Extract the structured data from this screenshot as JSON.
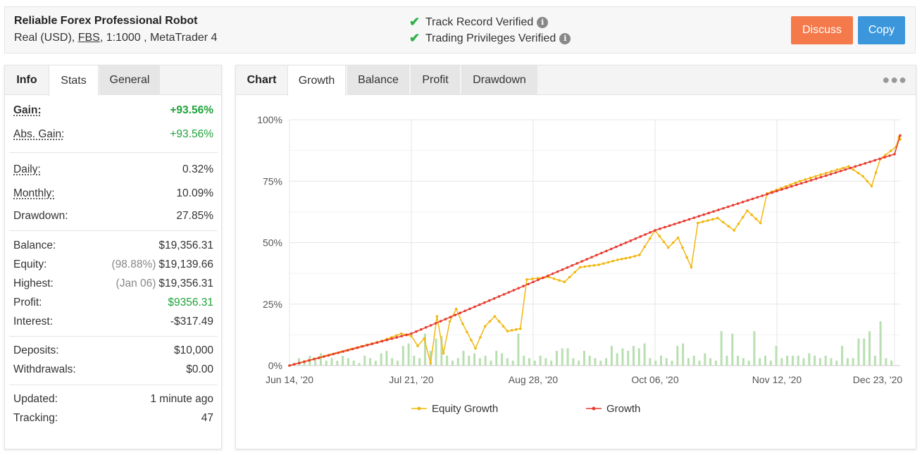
{
  "header": {
    "title": "Reliable Forex Professional Robot",
    "account_type": "Real (USD),",
    "broker": "FBS",
    "leverage_platform": ", 1:1000 , MetaTrader 4",
    "verify_track": "Track Record Verified",
    "verify_trading": "Trading Privileges Verified",
    "discuss_label": "Discuss",
    "copy_label": "Copy"
  },
  "left_tabs": [
    "Info",
    "Stats",
    "General"
  ],
  "stats": {
    "gain_label": "Gain:",
    "gain_value": "+93.56%",
    "abs_gain_label": "Abs. Gain:",
    "abs_gain_value": "+93.56%",
    "daily_label": "Daily:",
    "daily_value": "0.32%",
    "monthly_label": "Monthly:",
    "monthly_value": "10.09%",
    "drawdown_label": "Drawdown:",
    "drawdown_value": "27.85%",
    "balance_label": "Balance:",
    "balance_value": "$19,356.31",
    "equity_label": "Equity:",
    "equity_pct": "(98.88%)",
    "equity_value": "$19,139.66",
    "highest_label": "Highest:",
    "highest_date": "(Jan 06)",
    "highest_value": "$19,356.31",
    "profit_label": "Profit:",
    "profit_value": "$9356.31",
    "interest_label": "Interest:",
    "interest_value": "-$317.49",
    "deposits_label": "Deposits:",
    "deposits_value": "$10,000",
    "withdrawals_label": "Withdrawals:",
    "withdrawals_value": "$0.00",
    "updated_label": "Updated:",
    "updated_value": "1 minute ago",
    "tracking_label": "Tracking:",
    "tracking_value": "47"
  },
  "right_tabs": [
    "Chart",
    "Growth",
    "Balance",
    "Profit",
    "Drawdown"
  ],
  "more_icon": "more-dots-icon",
  "colors": {
    "equity": "#f2b70f",
    "growth": "#e83a2f",
    "bars": "#b8dfb0",
    "discuss": "#f4794b",
    "copy": "#3b96db",
    "positive": "#1ea238"
  },
  "chart_data": {
    "type": "line",
    "y_ticks": [
      "100%",
      "75%",
      "50%",
      "25%",
      "0%"
    ],
    "ylim": [
      0,
      100
    ],
    "x_ticks": [
      "Jun 14, '20",
      "Jul 21, '20",
      "Aug 28, '20",
      "Oct 06, '20",
      "Nov 12, '20",
      "Dec 23, '20"
    ],
    "x_tick_dates": [
      "2020-06-14",
      "2020-07-21",
      "2020-08-28",
      "2020-10-06",
      "2020-11-12",
      "2020-12-23"
    ],
    "x_end_date": "2021-01-06",
    "series": [
      {
        "name": "Equity Growth",
        "points": [
          [
            "2020-06-14",
            0
          ],
          [
            "2020-06-28",
            5
          ],
          [
            "2020-07-12",
            10
          ],
          [
            "2020-07-18",
            13
          ],
          [
            "2020-07-21",
            12
          ],
          [
            "2020-07-23",
            8
          ],
          [
            "2020-07-25",
            11
          ],
          [
            "2020-07-27",
            1
          ],
          [
            "2020-07-29",
            20
          ],
          [
            "2020-07-31",
            5
          ],
          [
            "2020-08-02",
            18
          ],
          [
            "2020-08-04",
            23
          ],
          [
            "2020-08-06",
            17
          ],
          [
            "2020-08-10",
            7
          ],
          [
            "2020-08-13",
            16
          ],
          [
            "2020-08-16",
            20
          ],
          [
            "2020-08-20",
            14
          ],
          [
            "2020-08-24",
            15
          ],
          [
            "2020-08-26",
            35
          ],
          [
            "2020-09-02",
            36
          ],
          [
            "2020-09-07",
            34
          ],
          [
            "2020-09-12",
            40
          ],
          [
            "2020-09-18",
            41
          ],
          [
            "2020-09-24",
            43
          ],
          [
            "2020-09-28",
            44
          ],
          [
            "2020-10-01",
            45
          ],
          [
            "2020-10-06",
            55
          ],
          [
            "2020-10-10",
            48
          ],
          [
            "2020-10-13",
            52
          ],
          [
            "2020-10-17",
            40
          ],
          [
            "2020-10-19",
            58
          ],
          [
            "2020-10-25",
            60
          ],
          [
            "2020-10-30",
            55
          ],
          [
            "2020-11-03",
            63
          ],
          [
            "2020-11-07",
            58
          ],
          [
            "2020-11-09",
            70
          ],
          [
            "2020-11-20",
            75
          ],
          [
            "2020-12-01",
            79
          ],
          [
            "2020-12-07",
            81
          ],
          [
            "2020-12-12",
            77
          ],
          [
            "2020-12-15",
            73
          ],
          [
            "2020-12-18",
            84
          ],
          [
            "2020-12-27",
            89
          ],
          [
            "2021-01-03",
            93
          ],
          [
            "2021-01-06",
            92
          ]
        ]
      },
      {
        "name": "Growth",
        "points": [
          [
            "2020-06-14",
            0
          ],
          [
            "2020-07-21",
            13
          ],
          [
            "2020-08-28",
            34
          ],
          [
            "2020-10-06",
            55
          ],
          [
            "2020-11-12",
            71
          ],
          [
            "2020-12-23",
            86
          ],
          [
            "2021-01-06",
            93.56
          ]
        ]
      }
    ],
    "daily_bars_note": "light-green daily profit bars along the x axis",
    "daily_bars": [
      1,
      3,
      2,
      4,
      3,
      5,
      2,
      3,
      2,
      4,
      3,
      2,
      1,
      4,
      3,
      2,
      5,
      6,
      3,
      2,
      8,
      9,
      4,
      3,
      13,
      6,
      11,
      12,
      4,
      2,
      3,
      6,
      4,
      5,
      3,
      4,
      2,
      6,
      5,
      3,
      2,
      13,
      4,
      3,
      2,
      4,
      3,
      2,
      6,
      7,
      7,
      3,
      2,
      6,
      4,
      3,
      2,
      3,
      8,
      5,
      7,
      6,
      8,
      7,
      9,
      3,
      2,
      4,
      3,
      2,
      8,
      9,
      3,
      4,
      2,
      5,
      3,
      2,
      14,
      4,
      13,
      4,
      3,
      2,
      14,
      3,
      4,
      2,
      8,
      3,
      4,
      4,
      4,
      3,
      5,
      4,
      3,
      4,
      3,
      2,
      8,
      3,
      3,
      11,
      11,
      14,
      4,
      18,
      3,
      2
    ]
  }
}
